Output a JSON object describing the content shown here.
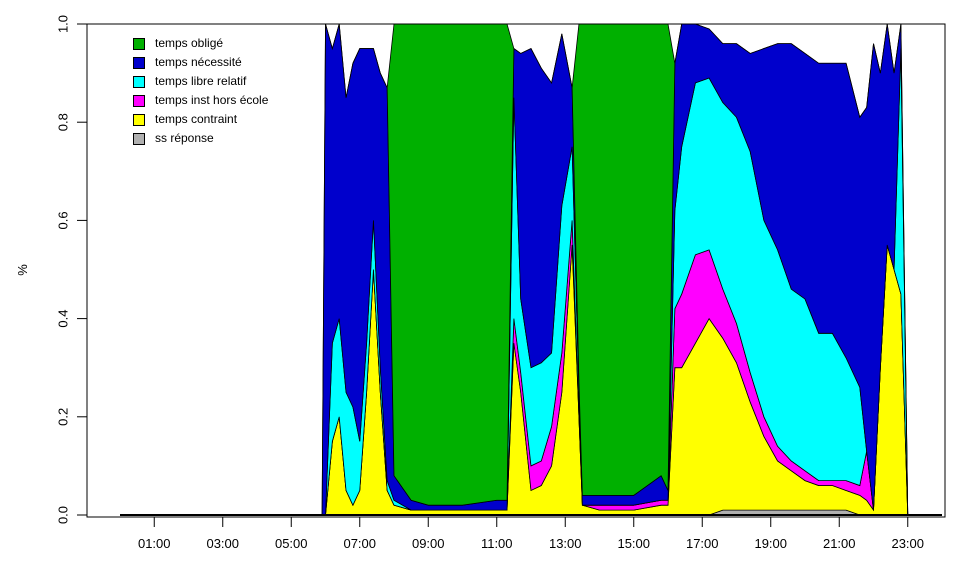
{
  "chart_data": {
    "type": "area",
    "title": "",
    "xlabel": "",
    "ylabel": "%",
    "xlim": [
      0,
      24
    ],
    "ylim": [
      0,
      1
    ],
    "xticks": [
      "01:00",
      "03:00",
      "05:00",
      "07:00",
      "09:00",
      "11:00",
      "13:00",
      "15:00",
      "17:00",
      "19:00",
      "21:00",
      "23:00"
    ],
    "yticks": [
      "0.0",
      "0.2",
      "0.4",
      "0.6",
      "0.8",
      "1.0"
    ],
    "legend_position": "top-left",
    "x": [
      0,
      5.9,
      6.0,
      6.2,
      6.4,
      6.6,
      6.8,
      7.0,
      7.2,
      7.4,
      7.6,
      7.8,
      8.0,
      8.5,
      9.0,
      10.0,
      11.0,
      11.3,
      11.5,
      11.7,
      12.0,
      12.3,
      12.6,
      12.9,
      13.2,
      13.4,
      13.5,
      14.0,
      15.0,
      15.8,
      16.0,
      16.2,
      16.4,
      16.8,
      17.2,
      17.6,
      18.0,
      18.4,
      18.8,
      19.2,
      19.6,
      20.0,
      20.4,
      20.8,
      21.2,
      21.6,
      21.8,
      22.0,
      22.2,
      22.4,
      22.6,
      22.8,
      23.0,
      24.0
    ],
    "series": [
      {
        "name": "ss réponse",
        "color": "#b0b0b0",
        "values": [
          0,
          0,
          0,
          0,
          0,
          0,
          0,
          0,
          0,
          0,
          0,
          0,
          0,
          0,
          0,
          0,
          0,
          0,
          0,
          0,
          0,
          0,
          0,
          0,
          0,
          0,
          0,
          0,
          0,
          0,
          0,
          0,
          0,
          0,
          0,
          0.01,
          0.01,
          0.01,
          0.01,
          0.01,
          0.01,
          0.01,
          0.01,
          0.01,
          0.01,
          0,
          0,
          0,
          0,
          0,
          0,
          0,
          0,
          0
        ]
      },
      {
        "name": "temps contraint",
        "color": "#ffff00",
        "values": [
          0,
          0,
          0,
          0.15,
          0.2,
          0.05,
          0.02,
          0.05,
          0.25,
          0.5,
          0.25,
          0.05,
          0.02,
          0.01,
          0.01,
          0.01,
          0.01,
          0.01,
          0.35,
          0.25,
          0.05,
          0.06,
          0.1,
          0.25,
          0.55,
          0.2,
          0.02,
          0.01,
          0.01,
          0.02,
          0.02,
          0.3,
          0.3,
          0.35,
          0.4,
          0.35,
          0.3,
          0.22,
          0.15,
          0.1,
          0.08,
          0.06,
          0.05,
          0.05,
          0.04,
          0.04,
          0.03,
          0.01,
          0.3,
          0.55,
          0.5,
          0.45,
          0,
          0
        ]
      },
      {
        "name": "temps inst hors école",
        "color": "#ff00ff",
        "values": [
          0,
          0,
          0,
          0,
          0,
          0,
          0,
          0,
          0,
          0,
          0,
          0,
          0,
          0,
          0,
          0,
          0,
          0,
          0.05,
          0.04,
          0.05,
          0.05,
          0.08,
          0.08,
          0.05,
          0,
          0,
          0.01,
          0.01,
          0.01,
          0.01,
          0.12,
          0.15,
          0.18,
          0.14,
          0.1,
          0.08,
          0.06,
          0.04,
          0.03,
          0.02,
          0.02,
          0.01,
          0.01,
          0.02,
          0.02,
          0.1,
          0,
          0,
          0,
          0,
          0,
          0,
          0
        ]
      },
      {
        "name": "temps libre relatif",
        "color": "#00ffff",
        "values": [
          0,
          0,
          0,
          0.2,
          0.2,
          0.2,
          0.2,
          0.1,
          0.1,
          0.1,
          0.05,
          0.02,
          0.01,
          0,
          0,
          0,
          0,
          0,
          0.45,
          0.15,
          0.2,
          0.2,
          0.15,
          0.3,
          0.15,
          0.05,
          0,
          0,
          0,
          0,
          0,
          0.2,
          0.3,
          0.35,
          0.35,
          0.38,
          0.42,
          0.45,
          0.4,
          0.4,
          0.35,
          0.35,
          0.3,
          0.3,
          0.25,
          0.2,
          0,
          0,
          0,
          0,
          0,
          0.5,
          0,
          0
        ]
      },
      {
        "name": "temps nécessité",
        "color": "#0000cc",
        "values": [
          0,
          0,
          1,
          0.6,
          0.6,
          0.6,
          0.7,
          0.8,
          0.6,
          0.35,
          0.6,
          0.8,
          0.05,
          0.02,
          0.01,
          0.01,
          0.02,
          0.02,
          0.1,
          0.5,
          0.65,
          0.6,
          0.55,
          0.35,
          0.12,
          0.02,
          0.02,
          0.02,
          0.02,
          0.05,
          0.02,
          0.3,
          0.25,
          0.12,
          0.1,
          0.12,
          0.15,
          0.2,
          0.35,
          0.42,
          0.5,
          0.5,
          0.55,
          0.55,
          0.6,
          0.55,
          0.7,
          0.95,
          0.6,
          0.45,
          0.4,
          0.05,
          0,
          0
        ]
      },
      {
        "name": "temps obligé",
        "color": "#00b000",
        "values": [
          0,
          0,
          0,
          0,
          0,
          0,
          0,
          0,
          0,
          0,
          0,
          0,
          0.92,
          0.97,
          0.98,
          0.98,
          0.97,
          0.97,
          0,
          0,
          0,
          0,
          0,
          0,
          0,
          0.73,
          0.96,
          0.96,
          0.96,
          0.92,
          0.95,
          0,
          0,
          0,
          0,
          0,
          0,
          0,
          0,
          0,
          0,
          0,
          0,
          0,
          0,
          0,
          0,
          0,
          0,
          0,
          0,
          0,
          0,
          0
        ]
      }
    ]
  }
}
